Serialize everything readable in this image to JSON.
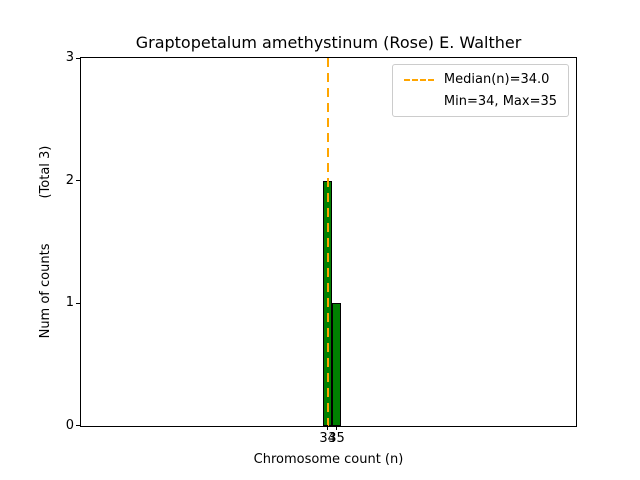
{
  "figure": {
    "title": "Graptopetalum amethystinum (Rose) E. Walther",
    "xlabel": "Chromosome count (n)",
    "ylabel_main": "Num of counts",
    "ylabel_secondary": "(Total 3)"
  },
  "chart_data": {
    "type": "bar",
    "title": "Graptopetalum amethystinum (Rose) E. Walther",
    "xlabel": "Chromosome count (n)",
    "ylabel": "Num of counts (Total 3)",
    "categories": [
      34,
      35
    ],
    "values": [
      2,
      1
    ],
    "total_counts": 3,
    "median": 34.0,
    "min": 34,
    "max": 35,
    "bar_width": 1,
    "xticks": [
      34,
      35
    ],
    "yticks": [
      0,
      1,
      2,
      3
    ],
    "xlim": [
      6.5,
      61.7
    ],
    "ylim": [
      0,
      3
    ],
    "grid": false,
    "legend_position": "upper right",
    "legend": [
      "Median(n)=34.0",
      "Min=34, Max=35"
    ],
    "colors": {
      "bar_fill": "#008000",
      "bar_edge": "#000000",
      "median_line": "#FFA500",
      "legend_border": "#cccccc"
    }
  }
}
